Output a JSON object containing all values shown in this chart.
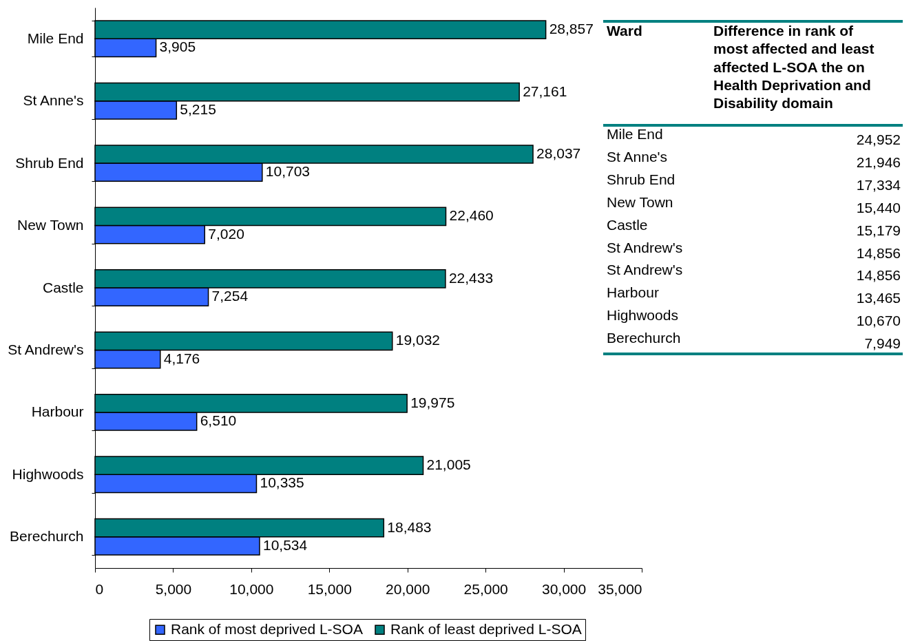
{
  "chart_data": [
    {
      "type": "bar",
      "orientation": "horizontal",
      "categories": [
        "Mile End",
        "St Anne's",
        "Shrub End",
        "New Town",
        "Castle",
        "St Andrew's",
        "Harbour",
        "Highwoods",
        "Berechurch"
      ],
      "series": [
        {
          "name": "Rank of most deprived L-SOA",
          "color": "#3366ff",
          "values": [
            3905,
            5215,
            10703,
            7020,
            7254,
            4176,
            6510,
            10335,
            10534
          ],
          "value_labels": [
            "3,905",
            "5,215",
            "10,703",
            "7,020",
            "7,254",
            "4,176",
            "6,510",
            "10,335",
            "10,534"
          ]
        },
        {
          "name": "Rank of least deprived L-SOA",
          "color": "#008080",
          "values": [
            28857,
            27161,
            28037,
            22460,
            22433,
            19032,
            19975,
            21005,
            18483
          ],
          "value_labels": [
            "28,857",
            "27,161",
            "28,037",
            "22,460",
            "22,433",
            "19,032",
            "19,975",
            "21,005",
            "18,483"
          ]
        }
      ],
      "xlim": [
        0,
        35000
      ],
      "xticks": [
        0,
        {
          "value": 5000,
          "label": "5,000"
        },
        {
          "value": 10000,
          "label": "10,000"
        },
        {
          "value": 15000,
          "label": "15,000"
        },
        {
          "value": 20000,
          "label": "20,000"
        },
        {
          "value": 25000,
          "label": "25,000"
        },
        {
          "value": 30000,
          "label": "30,000"
        },
        {
          "value": 35000,
          "label": "35,000"
        }
      ],
      "legend": "bottom"
    },
    {
      "type": "other",
      "annotations": [
        "Ward",
        "Difference in rank of most affected and least affected L-SOA the on Health Deprivation and Disability domain"
      ],
      "categories": [
        "Mile End",
        "St Anne's",
        "Shrub End",
        "New Town",
        "Castle",
        "St Andrew's",
        "St Andrew's",
        "Harbour",
        "Highwoods",
        "Berechurch"
      ],
      "value_labels": [
        "24,952",
        "21,946",
        "17,334",
        "15,440",
        "15,179",
        "14,856",
        "14,856",
        "13,465",
        "10,670",
        "7,949"
      ]
    }
  ]
}
